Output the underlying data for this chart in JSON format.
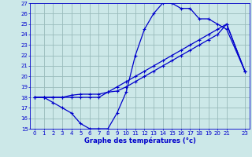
{
  "title": "Graphe des températures (°c)",
  "bg_color": "#cce8e8",
  "line_color": "#0000cc",
  "grid_color": "#99bbbb",
  "xlim": [
    -0.5,
    23.5
  ],
  "ylim": [
    15,
    27
  ],
  "xticks": [
    0,
    1,
    2,
    3,
    4,
    5,
    6,
    7,
    8,
    9,
    10,
    11,
    12,
    13,
    14,
    15,
    16,
    17,
    18,
    19,
    20,
    21,
    23
  ],
  "yticks": [
    15,
    16,
    17,
    18,
    19,
    20,
    21,
    22,
    23,
    24,
    25,
    26,
    27
  ],
  "line1_x": [
    0,
    1,
    2,
    3,
    4,
    5,
    6,
    7,
    8,
    9,
    10,
    11,
    12,
    13,
    14,
    15,
    16,
    17,
    18,
    19,
    20,
    21,
    23
  ],
  "line1_y": [
    18,
    18,
    17.5,
    17,
    16.5,
    15.5,
    15,
    15,
    15,
    16.5,
    18.5,
    22,
    24.5,
    26,
    27,
    27,
    26.5,
    26.5,
    25.5,
    25.5,
    25,
    24.5,
    20.5
  ],
  "line2_x": [
    0,
    1,
    2,
    3,
    4,
    5,
    6,
    7,
    8,
    9,
    10,
    11,
    12,
    13,
    14,
    15,
    16,
    17,
    18,
    19,
    20,
    21,
    23
  ],
  "line2_y": [
    18,
    18,
    18,
    18,
    18,
    18,
    18,
    18,
    18.5,
    19,
    19.5,
    20,
    20.5,
    21,
    21.5,
    22,
    22.5,
    23,
    23.5,
    24,
    24.5,
    25,
    20.5
  ],
  "line3_x": [
    0,
    1,
    2,
    3,
    4,
    5,
    6,
    7,
    8,
    9,
    10,
    11,
    12,
    13,
    14,
    15,
    16,
    17,
    18,
    19,
    20,
    21,
    23
  ],
  "line3_y": [
    18,
    18,
    18,
    18.0,
    18.2,
    18.3,
    18.3,
    18.3,
    18.5,
    18.6,
    19.0,
    19.5,
    20.0,
    20.5,
    21.0,
    21.5,
    22.0,
    22.5,
    23.0,
    23.5,
    24.0,
    25.0,
    20.5
  ]
}
